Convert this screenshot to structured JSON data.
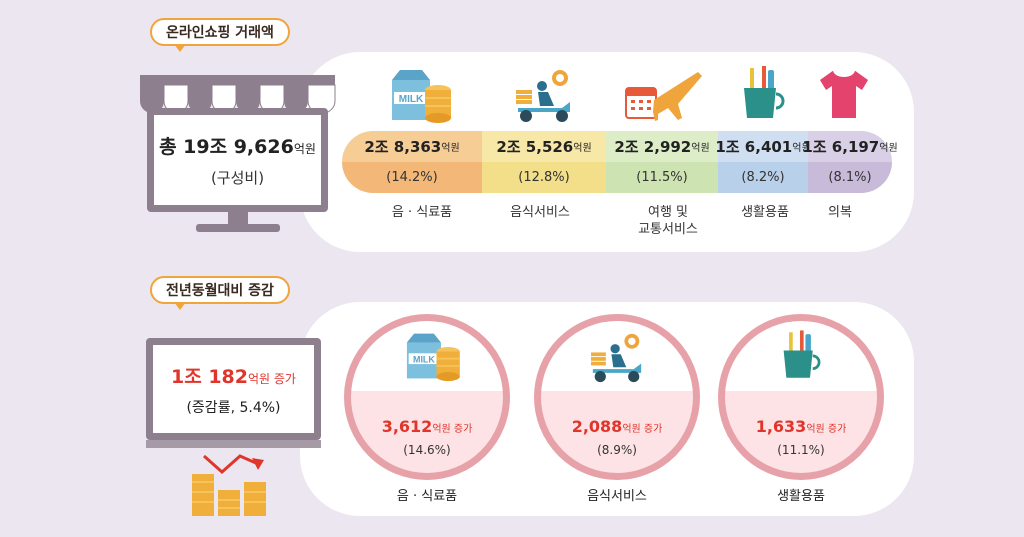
{
  "section1": {
    "title": "온라인쇼핑 거래액",
    "total_prefix": "총 19조 9,626",
    "total_unit": "억원",
    "total_sub": "(구성비)",
    "categories": [
      {
        "amount": "2조 8,363",
        "unit": "억원",
        "share": "(14.2%)",
        "label": "음 · 식료품",
        "color": "#f3b878",
        "color_top": "#f7cd96"
      },
      {
        "amount": "2조 5,526",
        "unit": "억원",
        "share": "(12.8%)",
        "label": "음식서비스",
        "color": "#f3de89",
        "color_top": "#f7e8a8"
      },
      {
        "amount": "2조 2,992",
        "unit": "억원",
        "share": "(11.5%)",
        "label": "여행 및",
        "label2": "교통서비스",
        "color": "#cde4b2",
        "color_top": "#ddedc8"
      },
      {
        "amount": "1조 6,401",
        "unit": "억원",
        "share": "(8.2%)",
        "label": "생활용품",
        "color": "#b9d0ea",
        "color_top": "#cfdff1"
      },
      {
        "amount": "1조 6,197",
        "unit": "억원",
        "share": "(8.1%)",
        "label": "의복",
        "color": "#c8bad9",
        "color_top": "#d9cfe6"
      }
    ],
    "icons": [
      "milk-coins-icon",
      "delivery-scooter-icon",
      "calendar-airplane-icon",
      "toothbrush-cup-icon",
      "tshirt-icon"
    ]
  },
  "section2": {
    "title": "전년동월대비 증감",
    "increase_value": "1조 182",
    "increase_unit": "억원 증가",
    "increase_sub": "(증감률, 5.4%)",
    "items": [
      {
        "value": "3,612",
        "unit": "억원 증가",
        "pct": "(14.6%)",
        "label": "음 · 식료품"
      },
      {
        "value": "2,088",
        "unit": "억원 증가",
        "pct": "(8.9%)",
        "label": "음식서비스"
      },
      {
        "value": "1,633",
        "unit": "억원 증가",
        "pct": "(11.1%)",
        "label": "생활용품"
      }
    ]
  },
  "colors": {
    "background": "#ebe6ef",
    "accent_orange": "#f0a43c",
    "increase_red": "#e0352b",
    "monitor_frame": "#8d7f8d",
    "circle_ring": "#e6a2a8"
  }
}
